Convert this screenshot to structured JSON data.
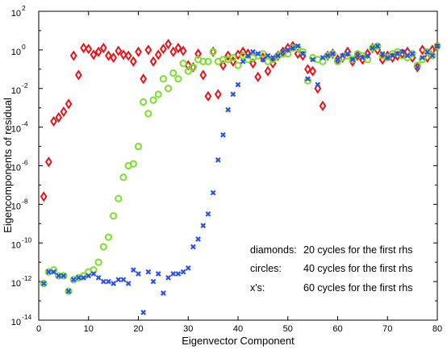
{
  "chart_data": {
    "type": "scatter",
    "xlabel": "Eigenvector Component",
    "ylabel": "Eigencomponents of residual",
    "xlim": [
      0,
      80
    ],
    "ylim_log10": [
      -14,
      2
    ],
    "yscale": "log",
    "x_ticks": [
      0,
      10,
      20,
      30,
      40,
      50,
      60,
      70,
      80
    ],
    "y_ticks": [
      -14,
      -12,
      -10,
      -8,
      -6,
      -4,
      -2,
      0,
      2
    ],
    "y_tick_labels": [
      "10",
      "10",
      "10",
      "10",
      "10",
      "10",
      "10",
      "10",
      "10"
    ],
    "y_tick_exponents": [
      "-14",
      "-12",
      "-10",
      "-8",
      "-6",
      "-4",
      "-2",
      "0",
      "2"
    ],
    "grid": false,
    "annotations": [
      {
        "key": "diamonds:",
        "text": "20 cycles for the first rhs"
      },
      {
        "key": "circles:",
        "text": "40 cycles for the first rhs"
      },
      {
        "key": "x's:",
        "text": "60 cycles for the first rhs"
      }
    ],
    "series": [
      {
        "marker": "diamond",
        "color": "#e8141a",
        "x": [
          1,
          2,
          3,
          4,
          5,
          6,
          7,
          8,
          9,
          10,
          11,
          12,
          13,
          14,
          15,
          16,
          17,
          18,
          19,
          20,
          21,
          22,
          23,
          24,
          25,
          26,
          27,
          28,
          29,
          30,
          31,
          32,
          33,
          34,
          35,
          36,
          37,
          38,
          39,
          40,
          41,
          42,
          43,
          44,
          45,
          46,
          47,
          48,
          49,
          50,
          51,
          52,
          53,
          54,
          55,
          56,
          57,
          58,
          59,
          60,
          61,
          62,
          63,
          64,
          65,
          66,
          67,
          68,
          69,
          70,
          71,
          72,
          73,
          74,
          75,
          76,
          77,
          78,
          79,
          80
        ],
        "log10_y": [
          -7.6,
          -5.8,
          -3.7,
          -3.5,
          -3.2,
          -2.8,
          -0.3,
          -1.3,
          0.1,
          0.05,
          -0.25,
          -0.1,
          0.1,
          -0.3,
          -0.4,
          -0.05,
          -0.25,
          -0.3,
          -0.6,
          -0.1,
          -1.5,
          0.0,
          -0.6,
          -0.25,
          0.05,
          0.3,
          -0.1,
          0.1,
          -0.05,
          -0.8,
          -0.9,
          -0.2,
          -1.3,
          -2.4,
          -0.1,
          -2.3,
          -0.8,
          -0.3,
          -0.6,
          -0.25,
          -0.1,
          -0.2,
          -0.7,
          -1.4,
          -0.4,
          -1.1,
          -0.7,
          -0.3,
          -0.1,
          0.1,
          0.2,
          -0.2,
          -0.3,
          -1.0,
          -1.1,
          -2.0,
          -2.9,
          -0.3,
          -0.2,
          -0.5,
          -0.4,
          -0.1,
          -0.6,
          -0.3,
          -0.5,
          -0.2,
          0.1,
          0.0,
          -0.5,
          -0.3,
          -0.4,
          -0.3,
          -0.2,
          -0.1,
          -0.4,
          -0.9,
          0.0,
          -0.4,
          0.0,
          0.2
        ]
      },
      {
        "marker": "circle",
        "color": "#7be02a",
        "x": [
          1,
          2,
          3,
          4,
          5,
          6,
          7,
          8,
          9,
          10,
          11,
          12,
          13,
          14,
          15,
          16,
          17,
          18,
          19,
          20,
          21,
          22,
          23,
          24,
          25,
          26,
          27,
          28,
          29,
          30,
          31,
          32,
          33,
          34,
          35,
          36,
          37,
          38,
          39,
          40,
          41,
          42,
          43,
          44,
          45,
          46,
          47,
          48,
          49,
          50,
          51,
          52,
          53,
          54,
          55,
          56,
          57,
          58,
          59,
          60,
          61,
          62,
          63,
          64,
          65,
          66,
          67,
          68,
          69,
          70,
          71,
          72,
          73,
          74,
          75,
          76,
          77,
          78,
          79,
          80
        ],
        "log10_y": [
          -12.1,
          -11.5,
          -11.4,
          -11.7,
          -11.7,
          -12.5,
          -11.9,
          -11.8,
          -11.7,
          -11.5,
          -11.4,
          -11.0,
          -10.2,
          -9.7,
          -8.6,
          -7.7,
          -6.6,
          -6.0,
          -5.9,
          -5.0,
          -2.7,
          -3.3,
          -2.6,
          -2.3,
          -1.5,
          -2.0,
          -1.2,
          -1.5,
          -0.7,
          -1.1,
          -0.9,
          -0.5,
          -0.6,
          -0.6,
          -0.1,
          -0.6,
          -0.5,
          -0.5,
          -0.4,
          -0.8,
          -0.3,
          -0.5,
          -0.4,
          -0.3,
          -0.2,
          -0.6,
          -0.5,
          -0.3,
          -0.2,
          -0.2,
          0.1,
          0.1,
          -0.1,
          -1.6,
          -0.4,
          -0.5,
          -0.6,
          -0.3,
          -0.2,
          -0.6,
          -0.4,
          -0.3,
          -0.5,
          -0.2,
          -0.3,
          -0.5,
          0.1,
          0.2,
          -0.3,
          -0.4,
          -0.2,
          -0.1,
          -0.3,
          -0.4,
          -0.2,
          -0.8,
          -0.5,
          -0.1,
          -0.3,
          0.2
        ]
      },
      {
        "marker": "x",
        "color": "#2a52e8",
        "x": [
          1,
          2,
          3,
          4,
          5,
          6,
          7,
          8,
          9,
          10,
          11,
          12,
          13,
          14,
          15,
          16,
          17,
          18,
          19,
          20,
          21,
          22,
          23,
          24,
          25,
          26,
          27,
          28,
          29,
          30,
          31,
          32,
          33,
          34,
          35,
          36,
          37,
          38,
          39,
          40,
          41,
          42,
          43,
          44,
          45,
          46,
          47,
          48,
          49,
          50,
          51,
          52,
          53,
          54,
          55,
          56,
          57,
          58,
          59,
          60,
          61,
          62,
          63,
          64,
          65,
          66,
          67,
          68,
          69,
          70,
          71,
          72,
          73,
          74,
          75,
          76,
          77,
          78,
          79,
          80
        ],
        "log10_y": [
          -12.1,
          -11.5,
          -11.5,
          -11.7,
          -11.7,
          -12.5,
          -11.9,
          -11.8,
          -11.8,
          -11.7,
          -11.6,
          -11.8,
          -12.0,
          -12.0,
          -12.1,
          -11.9,
          -11.9,
          -12.1,
          -11.4,
          -11.6,
          -13.6,
          -11.5,
          -12.0,
          -11.6,
          -12.6,
          -11.8,
          -11.6,
          -11.6,
          -11.5,
          -11.3,
          -10.2,
          -9.8,
          -9.1,
          -8.5,
          -7.4,
          -5.7,
          -4.4,
          -3.1,
          -2.3,
          -1.8,
          -0.6,
          -0.3,
          -0.1,
          -0.2,
          -0.5,
          -0.3,
          -0.4,
          -0.3,
          -0.1,
          0.0,
          0.1,
          0.2,
          -0.2,
          -1.5,
          -0.5,
          -1.8,
          -0.4,
          -0.3,
          -0.2,
          -0.5,
          -0.3,
          -0.2,
          -0.5,
          -0.3,
          -0.4,
          -0.3,
          0.1,
          0.2,
          -0.2,
          -0.4,
          -0.3,
          -0.2,
          -0.1,
          -0.3,
          -0.2,
          -0.9,
          -0.4,
          -0.1,
          -0.3,
          0.2
        ]
      }
    ]
  }
}
